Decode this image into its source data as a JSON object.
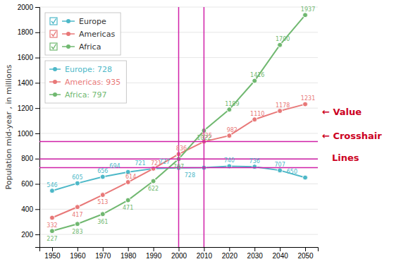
{
  "chart_data": {
    "type": "line",
    "ylabel": "Population mid-year , in millions",
    "x": [
      1950,
      1960,
      1970,
      1980,
      1990,
      2000,
      2010,
      2020,
      2030,
      2040,
      2050
    ],
    "series": [
      {
        "name": "Europe",
        "color": "#4DB8C8",
        "values": [
          546,
          605,
          656,
          694,
          721,
          727,
          728,
          740,
          736,
          707,
          650
        ]
      },
      {
        "name": "Americas",
        "color": "#E87878",
        "values": [
          332,
          417,
          513,
          614,
          721,
          836,
          935,
          982,
          1110,
          1178,
          1231
        ]
      },
      {
        "name": "Africa",
        "color": "#70B870",
        "values": [
          227,
          283,
          361,
          471,
          622,
          797,
          1022,
          1189,
          1416,
          1700,
          1937
        ]
      }
    ],
    "xlim": [
      1945,
      2055
    ],
    "ylim": [
      100,
      2000
    ],
    "xticks": [
      1950,
      1960,
      1970,
      1980,
      1990,
      2000,
      2010,
      2020,
      2030,
      2040,
      2050
    ],
    "yticks": [
      200,
      400,
      600,
      800,
      1000,
      1200,
      1400,
      1600,
      1800,
      2000
    ],
    "grid": true,
    "legend": "upper left",
    "marker": "circle",
    "data_labels": true,
    "reference_lines": [
      {
        "axis": "x",
        "value": 2000,
        "color": "#D020A8"
      },
      {
        "axis": "x",
        "value": 2010,
        "color": "#D020A8"
      },
      {
        "axis": "y",
        "value": 728,
        "color": "#D020A8"
      },
      {
        "axis": "y",
        "value": 935,
        "color": "#D020A8"
      },
      {
        "axis": "y",
        "value": 797,
        "color": "#D020A8"
      }
    ],
    "tooltip": [
      "Europe: 728",
      "Americas: 935",
      "Africa: 797"
    ],
    "annotations": [
      {
        "text": "← Value",
        "color": "#CC0022"
      },
      {
        "text": "← Crosshair",
        "color": "#CC0022"
      },
      {
        "text": "Lines",
        "color": "#CC0022"
      }
    ]
  }
}
